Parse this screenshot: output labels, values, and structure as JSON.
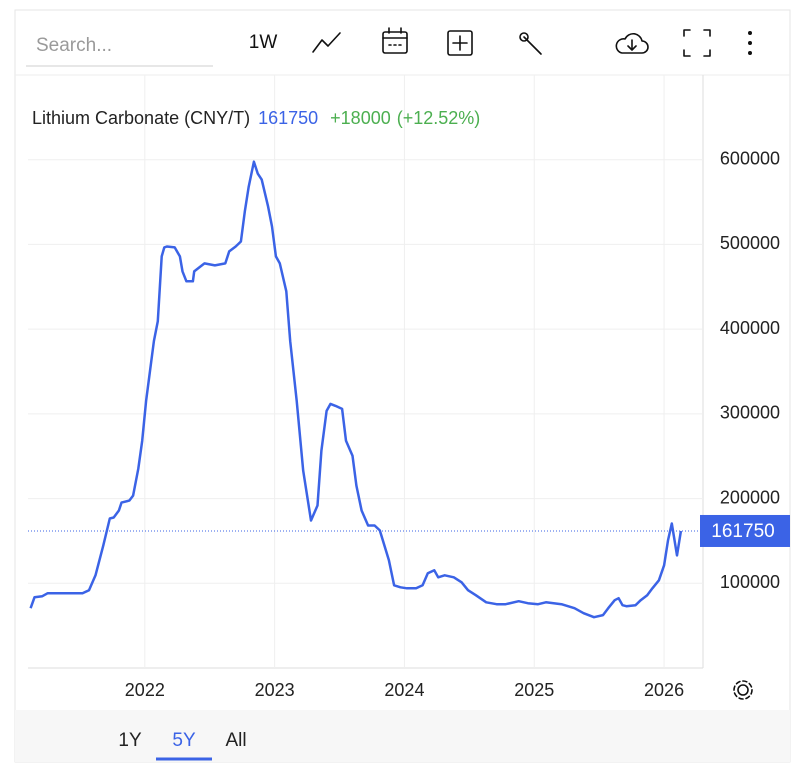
{
  "toolbar": {
    "search_placeholder": "Search...",
    "interval": "1W"
  },
  "ranges": [
    "1Y",
    "5Y",
    "All"
  ],
  "selected_range_index": 1,
  "chart_data": {
    "type": "line",
    "title": "Lithium Carbonate (CNY/T)",
    "last_value": 161750,
    "change_label": "+18000",
    "change_pct_label": "(+12.52%)",
    "x": [
      2021.12,
      2021.15,
      2021.21,
      2021.25,
      2021.52,
      2021.57,
      2021.62,
      2021.68,
      2021.73,
      2021.76,
      2021.8,
      2021.82,
      2021.88,
      2021.91,
      2021.95,
      2021.98,
      2022.01,
      2022.04,
      2022.07,
      2022.1,
      2022.13,
      2022.15,
      2022.17,
      2022.23,
      2022.27,
      2022.29,
      2022.32,
      2022.37,
      2022.38,
      2022.43,
      2022.46,
      2022.54,
      2022.62,
      2022.65,
      2022.7,
      2022.74,
      2022.77,
      2022.8,
      2022.84,
      2022.87,
      2022.9,
      2022.95,
      2022.98,
      2023.01,
      2023.04,
      2023.09,
      2023.12,
      2023.17,
      2023.22,
      2023.28,
      2023.33,
      2023.36,
      2023.4,
      2023.43,
      2023.47,
      2023.52,
      2023.55,
      2023.6,
      2023.63,
      2023.67,
      2023.72,
      2023.77,
      2023.81,
      2023.88,
      2023.92,
      2023.97,
      2024.02,
      2024.09,
      2024.14,
      2024.18,
      2024.23,
      2024.26,
      2024.31,
      2024.38,
      2024.44,
      2024.49,
      2024.55,
      2024.63,
      2024.71,
      2024.78,
      2024.88,
      2024.95,
      2025.03,
      2025.09,
      2025.21,
      2025.31,
      2025.38,
      2025.46,
      2025.53,
      2025.57,
      2025.62,
      2025.65,
      2025.68,
      2025.71,
      2025.78,
      2025.82,
      2025.87,
      2025.91,
      2025.96,
      2026.0,
      2026.03,
      2026.06,
      2026.1,
      2026.13
    ],
    "series": [
      {
        "name": "Lithium Carbonate (CNY/T)",
        "color": "#3b63e6",
        "values": [
          70600,
          83500,
          84700,
          88200,
          88200,
          91800,
          109400,
          144700,
          176500,
          177600,
          185900,
          195300,
          197600,
          203500,
          235300,
          268200,
          315300,
          350600,
          385900,
          409400,
          485900,
          496500,
          497600,
          496500,
          485900,
          468200,
          456500,
          456500,
          468200,
          474100,
          477600,
          475300,
          477600,
          491800,
          497600,
          503500,
          538800,
          568200,
          597600,
          583500,
          576500,
          544700,
          521200,
          485900,
          477600,
          444700,
          385900,
          315300,
          232900,
          174100,
          191800,
          256500,
          303500,
          311800,
          309400,
          305900,
          268200,
          250600,
          215300,
          185900,
          168200,
          168200,
          162400,
          127100,
          97600,
          95300,
          94100,
          94100,
          97600,
          111800,
          115300,
          107100,
          109400,
          107100,
          101200,
          91800,
          85900,
          77600,
          75300,
          75300,
          78800,
          76500,
          75300,
          77600,
          75300,
          70600,
          64700,
          60000,
          62400,
          70600,
          80000,
          82400,
          74100,
          72900,
          74100,
          80000,
          85900,
          94100,
          103500,
          121200,
          150600,
          170600,
          132900,
          161750
        ]
      }
    ],
    "xlim": [
      2021.1,
      2026.3
    ],
    "xticks": [
      2022,
      2023,
      2024,
      2025,
      2026
    ],
    "ylim": [
      0,
      700000
    ],
    "yticks": [
      100000,
      200000,
      300000,
      400000,
      500000,
      600000
    ],
    "grid": true,
    "y_axis_side": "right"
  }
}
